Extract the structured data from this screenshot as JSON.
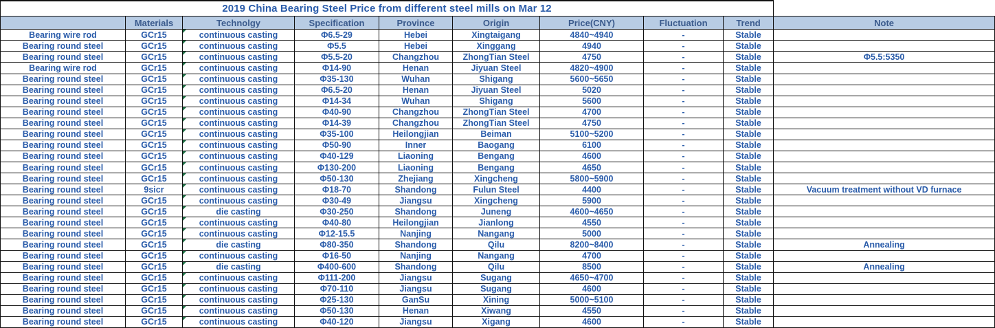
{
  "title": "2019 China Bearing Steel Price from different steel mills on Mar 12",
  "colors": {
    "header_bg": "#b8cce4",
    "header_text": "#3a5a8c",
    "data_text": "#2a5caa",
    "border": "#111111",
    "error_indicator_green": "#1e7145",
    "background": "#ffffff"
  },
  "table": {
    "columns": [
      "",
      "Materials",
      "Technolgy",
      "Specification",
      "Province",
      "Origin",
      "Price(CNY)",
      "Fluctuation",
      "Trend",
      "Note"
    ],
    "fields": [
      "product",
      "materials",
      "technology",
      "specification",
      "province",
      "origin",
      "price",
      "fluctuation",
      "trend",
      "note"
    ],
    "error_indicator_column": "technology",
    "rows": [
      [
        "Bearing wire rod",
        "GCr15",
        "continuous casting",
        "Φ6.5-29",
        "Hebei",
        "Xingtaigang",
        "4840~4940",
        "-",
        "Stable",
        ""
      ],
      [
        "Bearing round steel",
        "GCr15",
        "continuous casting",
        "Φ5.5",
        "Hebei",
        "Xinggang",
        "4940",
        "-",
        "Stable",
        ""
      ],
      [
        "Bearing round steel",
        "GCr15",
        "continuous casting",
        "Φ5.5-20",
        "Changzhou",
        "ZhongTian Steel",
        "4750",
        "-",
        "Stable",
        "Φ5.5:5350"
      ],
      [
        "Bearing wire rod",
        "GCr15",
        "continuous casting",
        "Φ14-90",
        "Henan",
        "Jiyuan Steel",
        "4820~4900",
        "-",
        "Stable",
        ""
      ],
      [
        "Bearing round steel",
        "GCr15",
        "continuous casting",
        "Φ35-130",
        "Wuhan",
        "Shigang",
        "5600~5650",
        "-",
        "Stable",
        ""
      ],
      [
        "Bearing round steel",
        "GCr15",
        "continuous casting",
        "Φ6.5-20",
        "Henan",
        "Jiyuan Steel",
        "5020",
        "-",
        "Stable",
        ""
      ],
      [
        "Bearing round steel",
        "GCr15",
        "continuous casting",
        "Φ14-34",
        "Wuhan",
        "Shigang",
        "5600",
        "-",
        "Stable",
        ""
      ],
      [
        "Bearing round steel",
        "GCr15",
        "continuous casting",
        "Φ40-90",
        "Changzhou",
        "ZhongTian Steel",
        "4700",
        "-",
        "Stable",
        ""
      ],
      [
        "Bearing round steel",
        "GCr15",
        "continuous casting",
        "Φ14-39",
        "Changzhou",
        "ZhongTian Steel",
        "4750",
        "-",
        "Stable",
        ""
      ],
      [
        "Bearing round steel",
        "GCr15",
        "continuous casting",
        "Φ35-100",
        "Heilongjian",
        "Beiman",
        "5100~5200",
        "-",
        "Stable",
        ""
      ],
      [
        "Bearing round steel",
        "GCr15",
        "continuous casting",
        "Φ50-90",
        "Inner",
        "Baogang",
        "6100",
        "-",
        "Stable",
        ""
      ],
      [
        "Bearing round steel",
        "GCr15",
        "continuous casting",
        "Φ40-129",
        "Liaoning",
        "Bengang",
        "4600",
        "-",
        "Stable",
        ""
      ],
      [
        "Bearing round steel",
        "GCr15",
        "continuous casting",
        "Φ130-200",
        "Liaoning",
        "Bengang",
        "4650",
        "-",
        "Stable",
        ""
      ],
      [
        "Bearing round steel",
        "GCr15",
        "continuous casting",
        "Φ50-130",
        "Zhejiang",
        "Xingcheng",
        "5800~5900",
        "-",
        "Stable",
        ""
      ],
      [
        "Bearing round steel",
        "9sicr",
        "continuous casting",
        "Φ18-70",
        "Shandong",
        "Fulun Steel",
        "4400",
        "-",
        "Stable",
        "Vacuum treatment without VD furnace"
      ],
      [
        "Bearing round steel",
        "GCr15",
        "continuous casting",
        "Φ30-49",
        "Jiangsu",
        "Xingcheng",
        "5900",
        "-",
        "Stable",
        ""
      ],
      [
        "Bearing round steel",
        "GCr15",
        "die casting",
        "Φ30-250",
        "Shandong",
        "Juneng",
        "4600~4650",
        "-",
        "Stable",
        ""
      ],
      [
        "Bearing round steel",
        "GCr15",
        "continuous casting",
        "Φ40-80",
        "Heilongjian",
        "Jianlong",
        "4550",
        "-",
        "Stable",
        ""
      ],
      [
        "Bearing round steel",
        "GCr15",
        "continuous casting",
        "Φ12-15.5",
        "Nanjing",
        "Nangang",
        "5000",
        "-",
        "Stable",
        ""
      ],
      [
        "Bearing round steel",
        "GCr15",
        "die casting",
        "Φ80-350",
        "Shandong",
        "Qilu",
        "8200~8400",
        "-",
        "Stable",
        "Annealing"
      ],
      [
        "Bearing round steel",
        "GCr15",
        "continuous casting",
        "Φ16-50",
        "Nanjing",
        "Nangang",
        "4700",
        "-",
        "Stable",
        ""
      ],
      [
        "Bearing round steel",
        "GCr15",
        "die casting",
        "Φ400-600",
        "Shandong",
        "Qilu",
        "8500",
        "-",
        "Stable",
        "Annealing"
      ],
      [
        "Bearing round steel",
        "GCr15",
        "continuous casting",
        "Φ111-200",
        "Jiangsu",
        "Sugang",
        "4650~4700",
        "-",
        "Stable",
        ""
      ],
      [
        "Bearing round steel",
        "GCr15",
        "continuous casting",
        "Φ70-110",
        "Jiangsu",
        "Sugang",
        "4600",
        "-",
        "Stable",
        ""
      ],
      [
        "Bearing round steel",
        "GCr15",
        "continuous casting",
        "Φ25-130",
        "GanSu",
        "Xining",
        "5000~5100",
        "-",
        "Stable",
        ""
      ],
      [
        "Bearing round steel",
        "GCr15",
        "continuous casting",
        "Φ50-130",
        "Henan",
        "Xiwang",
        "4550",
        "-",
        "Stable",
        ""
      ],
      [
        "Bearing round steel",
        "GCr15",
        "continuous casting",
        "Φ40-120",
        "Jiangsu",
        "Xigang",
        "4600",
        "-",
        "Stable",
        ""
      ]
    ]
  }
}
